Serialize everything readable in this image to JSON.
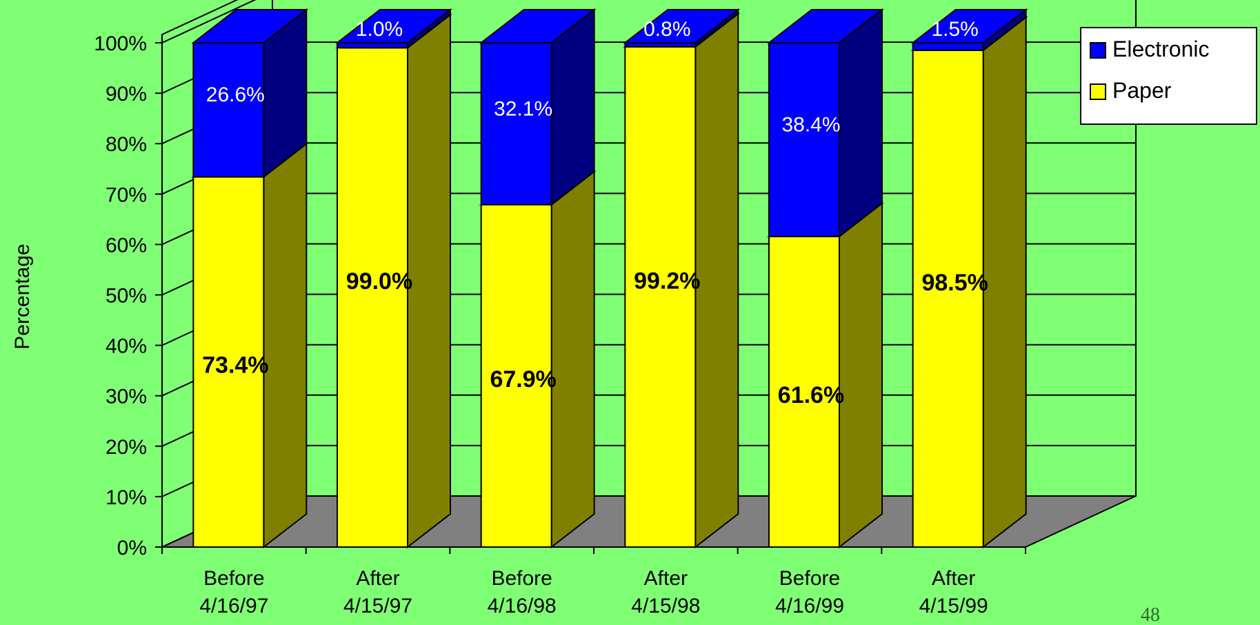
{
  "chart_data": {
    "type": "bar",
    "stacked": true,
    "three_d": true,
    "categories": [
      [
        "Before",
        "4/16/97"
      ],
      [
        "After",
        "4/15/97"
      ],
      [
        "Before",
        "4/16/98"
      ],
      [
        "After",
        "4/15/98"
      ],
      [
        "Before",
        "4/16/99"
      ],
      [
        "After",
        "4/15/99"
      ]
    ],
    "series": [
      {
        "name": "Paper",
        "color": "#ffff00",
        "side_color": "#808000",
        "values": [
          73.4,
          99.0,
          67.9,
          99.2,
          61.6,
          98.5
        ],
        "labels": [
          "73.4%",
          "99.0%",
          "67.9%",
          "99.2%",
          "61.6%",
          "98.5%"
        ]
      },
      {
        "name": "Electronic",
        "color": "#0000ff",
        "side_color": "#000080",
        "values": [
          26.6,
          1.0,
          32.1,
          0.8,
          38.4,
          1.5
        ],
        "labels": [
          "26.6%",
          "1.0%",
          "32.1%",
          "0.8%",
          "38.4%",
          "1.5%"
        ]
      }
    ],
    "ylabel": "Percentage",
    "xlabel": "",
    "title": "",
    "ylim": [
      0,
      100
    ],
    "y_ticks": [
      "0%",
      "10%",
      "20%",
      "30%",
      "40%",
      "50%",
      "60%",
      "70%",
      "80%",
      "90%",
      "100%"
    ],
    "grid": true,
    "legend": {
      "position": "top-right",
      "entries": [
        "Electronic",
        "Paper"
      ]
    },
    "colors": {
      "background": "#7fff74",
      "floor": "#808080",
      "gridline": "#000000"
    }
  },
  "page_number": "48"
}
